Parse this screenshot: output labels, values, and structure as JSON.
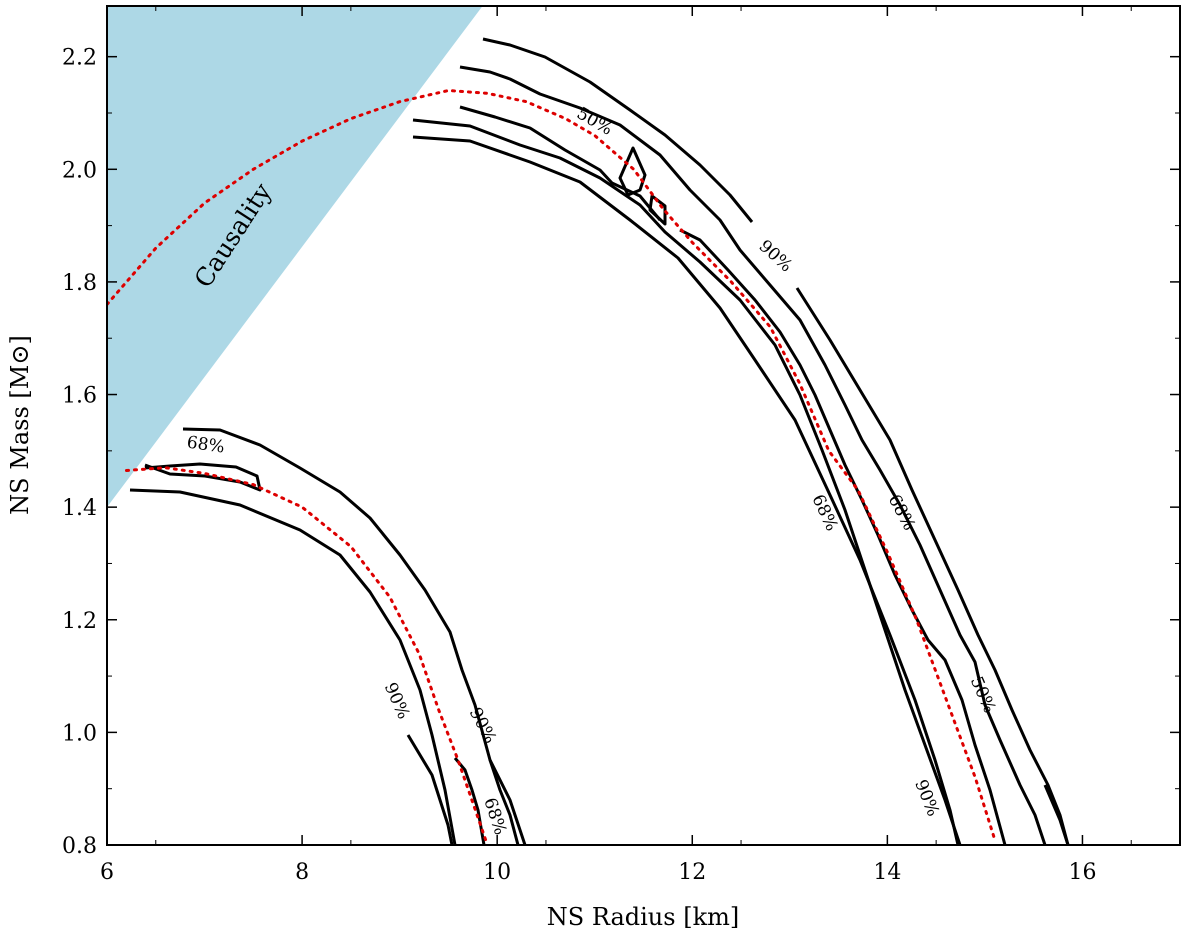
{
  "chart_data": {
    "type": "line",
    "xlabel": "NS Radius [km]",
    "ylabel": "NS Mass [M⊙]",
    "xlim": [
      6,
      17
    ],
    "ylim": [
      0.8,
      2.29
    ],
    "x_ticks": [
      6,
      8,
      10,
      12,
      14,
      16
    ],
    "x_tick_labels": [
      "6",
      "8",
      "10",
      "12",
      "14",
      "16"
    ],
    "y_ticks": [
      0.8,
      1.0,
      1.2,
      1.4,
      1.6,
      1.8,
      2.0,
      2.2
    ],
    "y_tick_labels": [
      "0.8",
      "1.0",
      "1.2",
      "1.4",
      "1.6",
      "1.8",
      "2.0",
      "2.2"
    ],
    "causality_region": {
      "label": "Causality",
      "color": "#add8e6",
      "boundary": [
        [
          6.0,
          1.4
        ],
        [
          9.85,
          2.29
        ]
      ]
    },
    "eos_curves": {
      "color": "#dd0000",
      "style": "dotted",
      "curves": [
        [
          [
            6.0,
            1.76
          ],
          [
            6.5,
            1.86
          ],
          [
            7.0,
            1.94
          ],
          [
            7.5,
            2.0
          ],
          [
            8.0,
            2.05
          ],
          [
            8.5,
            2.09
          ],
          [
            9.0,
            2.12
          ],
          [
            9.5,
            2.14
          ],
          [
            9.9,
            2.135
          ],
          [
            10.3,
            2.12
          ],
          [
            10.7,
            2.09
          ],
          [
            11.0,
            2.06
          ],
          [
            11.4,
            2.0
          ],
          [
            11.7,
            1.93
          ],
          [
            12.0,
            1.87
          ],
          [
            12.4,
            1.8
          ],
          [
            12.8,
            1.72
          ],
          [
            13.1,
            1.62
          ],
          [
            13.4,
            1.5
          ],
          [
            13.7,
            1.43
          ],
          [
            14.0,
            1.32
          ],
          [
            14.3,
            1.2
          ],
          [
            14.6,
            1.06
          ],
          [
            14.9,
            0.92
          ],
          [
            15.1,
            0.81
          ]
        ],
        [
          [
            6.2,
            1.465
          ],
          [
            6.6,
            1.47
          ],
          [
            7.0,
            1.46
          ],
          [
            7.5,
            1.44
          ],
          [
            8.0,
            1.4
          ],
          [
            8.5,
            1.33
          ],
          [
            8.9,
            1.24
          ],
          [
            9.2,
            1.14
          ],
          [
            9.4,
            1.04
          ],
          [
            9.6,
            0.95
          ],
          [
            9.8,
            0.85
          ],
          [
            9.9,
            0.8
          ]
        ]
      ]
    },
    "contour_labels": [
      "50%",
      "68%",
      "90%"
    ],
    "series": [
      {
        "name": "68%",
        "values": [
          [
            9.9,
            2.14
          ],
          [
            10.3,
            2.07
          ],
          [
            10.9,
            2.02
          ],
          [
            11.3,
            1.99
          ],
          [
            11.6,
            1.93
          ],
          [
            12.0,
            1.86
          ],
          [
            12.4,
            1.76
          ],
          [
            12.8,
            1.62
          ],
          [
            13.2,
            1.48
          ],
          [
            13.6,
            1.36
          ],
          [
            14.0,
            1.22
          ],
          [
            14.3,
            1.1
          ],
          [
            14.6,
            0.97
          ],
          [
            14.8,
            0.87
          ],
          [
            14.9,
            0.8
          ]
        ]
      },
      {
        "name": "90%",
        "values": [
          [
            9.1,
            2.06
          ],
          [
            9.9,
            2.05
          ],
          [
            10.6,
            2.02
          ],
          [
            11.2,
            1.96
          ],
          [
            11.8,
            1.85
          ],
          [
            12.4,
            1.7
          ],
          [
            12.8,
            1.57
          ],
          [
            13.2,
            1.43
          ],
          [
            13.5,
            1.3
          ],
          [
            13.8,
            1.16
          ],
          [
            14.1,
            1.02
          ],
          [
            14.3,
            0.9
          ],
          [
            14.4,
            0.8
          ]
        ]
      },
      {
        "name": "90%",
        "values": [
          [
            9.9,
            2.23
          ],
          [
            10.4,
            2.21
          ],
          [
            10.9,
            2.14
          ],
          [
            11.4,
            2.09
          ],
          [
            11.9,
            2.01
          ],
          [
            12.4,
            1.91
          ],
          [
            12.9,
            1.78
          ],
          [
            13.4,
            1.6
          ],
          [
            13.9,
            1.43
          ],
          [
            14.3,
            1.3
          ],
          [
            14.7,
            1.17
          ],
          [
            15.1,
            1.05
          ],
          [
            15.5,
            0.93
          ],
          [
            15.8,
            0.85
          ],
          [
            15.95,
            0.8
          ]
        ]
      },
      {
        "name": "68%",
        "values": [
          [
            6.7,
            1.535
          ],
          [
            7.2,
            1.53
          ],
          [
            7.7,
            1.5
          ],
          [
            8.2,
            1.46
          ],
          [
            8.7,
            1.39
          ],
          [
            9.1,
            1.3
          ],
          [
            9.5,
            1.2
          ],
          [
            9.9,
            1.07
          ],
          [
            10.1,
            0.96
          ],
          [
            10.3,
            0.86
          ],
          [
            10.4,
            0.8
          ]
        ]
      },
      {
        "name": "90%",
        "values": [
          [
            6.0,
            1.43
          ],
          [
            6.5,
            1.435
          ],
          [
            7.0,
            1.42
          ],
          [
            7.6,
            1.38
          ],
          [
            8.2,
            1.31
          ],
          [
            8.7,
            1.2
          ],
          [
            9.1,
            1.09
          ],
          [
            9.4,
            0.98
          ],
          [
            9.6,
            0.89
          ],
          [
            9.7,
            0.8
          ]
        ]
      }
    ]
  }
}
